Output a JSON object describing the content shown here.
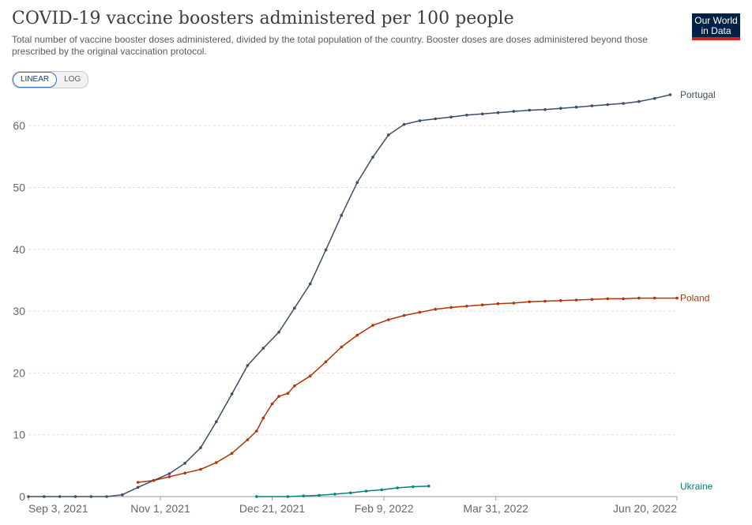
{
  "header": {
    "title": "COVID-19 vaccine boosters administered per 100 people",
    "subtitle": "Total number of vaccine booster doses administered, divided by the total population of the country. Booster doses are doses administered beyond those prescribed by the original vaccination protocol.",
    "logo_line1": "Our World",
    "logo_line2": "in Data"
  },
  "controls": {
    "linear_label": "LINEAR",
    "log_label": "LOG",
    "selected": "linear"
  },
  "colors": {
    "Portugal": "#3c4e66",
    "Poland": "#b13507",
    "Ukraine": "#00847e",
    "grid": "#dddddd",
    "logo": "#002147",
    "logo_accent": "#ce261e"
  },
  "chart_data": {
    "type": "line",
    "title": "COVID-19 vaccine boosters administered per 100 people",
    "xlabel": "",
    "ylabel": "",
    "x_range": [
      "2021-09-03",
      "2022-06-20"
    ],
    "x_ticks": [
      "Sep 3, 2021",
      "Nov 1, 2021",
      "Dec 21, 2021",
      "Feb 9, 2022",
      "Mar 31, 2022",
      "Jun 20, 2022"
    ],
    "ylim": [
      0,
      65
    ],
    "y_ticks": [
      0,
      10,
      20,
      30,
      40,
      50,
      60
    ],
    "grid": "horizontal dashed",
    "legend": "labels at line ends",
    "series": [
      {
        "name": "Portugal",
        "x": [
          "2021-09-03",
          "2021-09-10",
          "2021-09-17",
          "2021-09-24",
          "2021-10-01",
          "2021-10-08",
          "2021-10-15",
          "2021-10-22",
          "2021-10-29",
          "2021-11-05",
          "2021-11-12",
          "2021-11-19",
          "2021-11-26",
          "2021-12-03",
          "2021-12-10",
          "2021-12-17",
          "2021-12-24",
          "2021-12-31",
          "2022-01-07",
          "2022-01-14",
          "2022-01-21",
          "2022-01-28",
          "2022-02-04",
          "2022-02-11",
          "2022-02-18",
          "2022-02-25",
          "2022-03-04",
          "2022-03-11",
          "2022-03-18",
          "2022-03-25",
          "2022-04-01",
          "2022-04-08",
          "2022-04-15",
          "2022-04-22",
          "2022-04-29",
          "2022-05-06",
          "2022-05-13",
          "2022-05-20",
          "2022-05-27",
          "2022-06-03",
          "2022-06-10",
          "2022-06-17"
        ],
        "y": [
          0,
          0,
          0,
          0,
          0,
          0,
          0.3,
          1.5,
          2.6,
          3.7,
          5.4,
          7.9,
          12.1,
          16.6,
          21.2,
          24.0,
          26.6,
          30.5,
          34.4,
          39.9,
          45.5,
          50.8,
          54.9,
          58.5,
          60.2,
          60.8,
          61.1,
          61.4,
          61.7,
          61.9,
          62.1,
          62.3,
          62.5,
          62.6,
          62.8,
          63.0,
          63.2,
          63.4,
          63.6,
          63.9,
          64.4,
          65.0
        ]
      },
      {
        "name": "Poland",
        "x": [
          "2021-10-22",
          "2021-10-29",
          "2021-11-05",
          "2021-11-12",
          "2021-11-19",
          "2021-11-26",
          "2021-12-03",
          "2021-12-10",
          "2021-12-14",
          "2021-12-17",
          "2021-12-21",
          "2021-12-24",
          "2021-12-28",
          "2021-12-31",
          "2022-01-07",
          "2022-01-14",
          "2022-01-21",
          "2022-01-28",
          "2022-02-04",
          "2022-02-11",
          "2022-02-18",
          "2022-02-25",
          "2022-03-04",
          "2022-03-11",
          "2022-03-18",
          "2022-03-25",
          "2022-04-01",
          "2022-04-08",
          "2022-04-15",
          "2022-04-22",
          "2022-04-29",
          "2022-05-06",
          "2022-05-13",
          "2022-05-20",
          "2022-05-27",
          "2022-06-03",
          "2022-06-10",
          "2022-06-20"
        ],
        "y": [
          2.3,
          2.6,
          3.2,
          3.8,
          4.4,
          5.5,
          7.0,
          9.2,
          10.6,
          12.7,
          15.0,
          16.2,
          16.7,
          17.9,
          19.5,
          21.8,
          24.2,
          26.1,
          27.7,
          28.6,
          29.3,
          29.8,
          30.3,
          30.6,
          30.8,
          31.0,
          31.2,
          31.3,
          31.5,
          31.6,
          31.7,
          31.8,
          31.9,
          32.0,
          32.0,
          32.1,
          32.1,
          32.1
        ]
      },
      {
        "name": "Ukraine",
        "x": [
          "2021-12-14",
          "2021-12-28",
          "2022-01-04",
          "2022-01-11",
          "2022-01-18",
          "2022-01-25",
          "2022-02-01",
          "2022-02-08",
          "2022-02-15",
          "2022-02-22",
          "2022-03-01"
        ],
        "y": [
          0,
          0,
          0.1,
          0.2,
          0.4,
          0.6,
          0.9,
          1.1,
          1.4,
          1.6,
          1.7
        ]
      }
    ]
  }
}
